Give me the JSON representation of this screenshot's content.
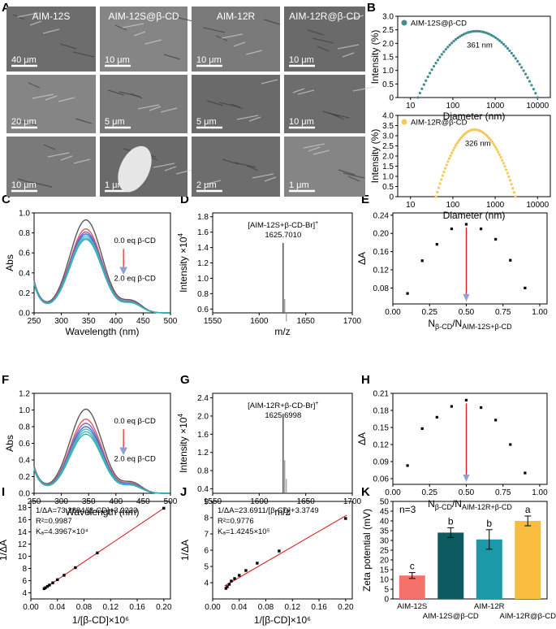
{
  "panel_labels": [
    "A",
    "B",
    "C",
    "D",
    "E",
    "F",
    "G",
    "H",
    "I",
    "J",
    "K"
  ],
  "sem": {
    "columns": [
      "AIM-12S",
      "AIM-12S@β-CD",
      "AIM-12R",
      "AIM-12R@β-CD"
    ],
    "scale_bars": [
      [
        "40 μm",
        "10 μm",
        "10 μm",
        "10 μm"
      ],
      [
        "20 μm",
        "5 μm",
        "5 μm",
        "10 μm"
      ],
      [
        "10 μm",
        "1 μm",
        "2 μm",
        "1 μm"
      ]
    ]
  },
  "colors": {
    "teal": "#3e8d8f",
    "gold": "#f5c95b",
    "red": "#e02020",
    "blue_arrow": "#8aa3d6",
    "bar1": "#f4726a",
    "bar2": "#0d5a61",
    "bar3": "#1c99a8",
    "bar4": "#f9bd3e"
  },
  "chart_data": [
    {
      "id": "B-top",
      "type": "scatter",
      "series": [
        {
          "name": "AIM-12S@β-CD",
          "peak_x": 361,
          "peak_y": 2.45,
          "x_min": 15,
          "x_max": 10000
        }
      ],
      "annotation": "361 nm",
      "xlabel": "Diameter (nm)",
      "ylabel": "Intensity (%)",
      "xscale": "log",
      "xlim": [
        5,
        20000
      ],
      "ylim": [
        0,
        3
      ],
      "xticks": [
        10,
        100,
        1000,
        10000
      ],
      "xtick_labels": [
        "10",
        "100",
        "1000",
        "10000"
      ],
      "yticks": [
        0,
        0.5,
        1,
        1.5,
        2,
        2.5,
        3
      ],
      "ytick_labels": [
        "0",
        "0.5",
        "1.0",
        "1.5",
        "2.0",
        "2.5",
        "3.0"
      ],
      "legend": "top-left"
    },
    {
      "id": "B-bottom",
      "type": "scatter",
      "series": [
        {
          "name": "AIM-12R@β-CD",
          "peak_x": 326,
          "peak_y": 3.3,
          "x_min": 40,
          "x_max": 3000
        }
      ],
      "annotation": "326 nm",
      "xlabel": "Diameter (nm)",
      "ylabel": "Intensity (%)",
      "xscale": "log",
      "xlim": [
        5,
        20000
      ],
      "ylim": [
        0,
        4
      ],
      "xticks": [
        10,
        100,
        1000,
        10000
      ],
      "xtick_labels": [
        "10",
        "100",
        "1000",
        "10000"
      ],
      "yticks": [
        0,
        0.5,
        1,
        1.5,
        2,
        2.5,
        3,
        3.5,
        4
      ],
      "ytick_labels": [
        "0",
        "0.5",
        "1.0",
        "1.5",
        "2.0",
        "2.5",
        "3.0",
        "3.5",
        "4.0"
      ],
      "legend": "top-left"
    },
    {
      "id": "C",
      "type": "line",
      "peak_x": 345,
      "peaks": [
        0.93,
        0.84,
        0.81,
        0.79,
        0.77,
        0.75,
        0.735
      ],
      "colors": [
        "#5a5a5a",
        "#e25a5a",
        "#8b5cc6",
        "#3a6fd8",
        "#5fb0b8",
        "#3fb8b0",
        "#2ab4b4"
      ],
      "xlabel": "Wavelength (nm)",
      "ylabel": "Abs",
      "xlim": [
        250,
        500
      ],
      "ylim": [
        0,
        1
      ],
      "xticks": [
        250,
        300,
        350,
        400,
        450,
        500
      ],
      "xtick_labels": [
        "250",
        "300",
        "350",
        "400",
        "450",
        "500"
      ],
      "yticks": [
        0,
        0.2,
        0.4,
        0.6,
        0.8,
        1
      ],
      "ytick_labels": [
        "0.0",
        "0.2",
        "0.4",
        "0.6",
        "0.8",
        "1.0"
      ],
      "annotations": [
        "0.0 eq β-CD",
        "2.0 eq β-CD"
      ]
    },
    {
      "id": "D",
      "type": "bar",
      "peak_x": 1625.701,
      "peak_y": 1.46,
      "label": "[AIM-12S+β-CD-Br]",
      "label_sup": "+",
      "label_value": "1625.7010",
      "xlabel": "m/z",
      "ylabel": "Intensity ×10",
      "ylabel_sup": "4",
      "xlim": [
        1550,
        1700
      ],
      "ylim": [
        0.55,
        1.85
      ],
      "xticks": [
        1550,
        1600,
        1650,
        1700
      ],
      "xtick_labels": [
        "1550",
        "1600",
        "1650",
        "1700"
      ],
      "yticks": [
        0.6,
        0.8,
        1,
        1.2,
        1.4,
        1.6,
        1.8
      ],
      "ytick_labels": [
        "0.6",
        "0.8",
        "1.0",
        "1.2",
        "1.4",
        "1.6",
        "1.8"
      ]
    },
    {
      "id": "E",
      "type": "scatter",
      "x": [
        0.1,
        0.2,
        0.3,
        0.4,
        0.5,
        0.6,
        0.7,
        0.8,
        0.9
      ],
      "y": [
        0.068,
        0.14,
        0.176,
        0.21,
        0.22,
        0.21,
        0.187,
        0.141,
        0.08
      ],
      "xlabel": "N",
      "xlabel_sub": "β-CD",
      "xlabel_mid": "/N",
      "xlabel_sub2": "AIM-12S+β-CD",
      "ylabel": "ΔA",
      "xlim": [
        0,
        1.05
      ],
      "ylim": [
        0.045,
        0.245
      ],
      "xticks": [
        0,
        0.25,
        0.5,
        0.75,
        1
      ],
      "xtick_labels": [
        "0.00",
        "0.25",
        "0.50",
        "0.75",
        "1.00"
      ],
      "yticks": [
        0.08,
        0.12,
        0.16,
        0.2,
        0.24
      ],
      "ytick_labels": [
        "0.08",
        "0.12",
        "0.16",
        "0.20",
        "0.24"
      ],
      "marker_x": 0.5
    },
    {
      "id": "F",
      "type": "line",
      "peak_x": 345,
      "peaks": [
        1.01,
        0.89,
        0.84,
        0.8,
        0.77,
        0.74,
        0.71
      ],
      "colors": [
        "#5a5a5a",
        "#e25a5a",
        "#8b5cc6",
        "#3a6fd8",
        "#5fb0b8",
        "#3fb8b0",
        "#2ab4b4"
      ],
      "xlabel": "Wavelength (nm)",
      "ylabel": "Abs",
      "xlim": [
        250,
        500
      ],
      "ylim": [
        0,
        1.2
      ],
      "xticks": [
        250,
        300,
        350,
        400,
        450,
        500
      ],
      "xtick_labels": [
        "250",
        "300",
        "350",
        "400",
        "450",
        "500"
      ],
      "yticks": [
        0,
        0.2,
        0.4,
        0.6,
        0.8,
        1,
        1.2
      ],
      "ytick_labels": [
        "0.0",
        "0.2",
        "0.4",
        "0.6",
        "0.8",
        "1.0",
        "1.2"
      ],
      "annotations": [
        "0.0 eq β-CD",
        "2.0 eq β-CD"
      ]
    },
    {
      "id": "G",
      "type": "bar",
      "peak_x": 1625.6998,
      "peak_y": 2.05,
      "label": "[AIM-12R+β-CD-Br]",
      "label_sup": "+",
      "label_value": "1625.6998",
      "xlabel": "m/z",
      "ylabel": "Intensity ×10",
      "ylabel_sup": "4",
      "xlim": [
        1550,
        1700
      ],
      "ylim": [
        0.3,
        2.5
      ],
      "xticks": [
        1550,
        1600,
        1650,
        1700
      ],
      "xtick_labels": [
        "1550",
        "1600",
        "1650",
        "1700"
      ],
      "yticks": [
        0.4,
        0.8,
        1.2,
        1.6,
        2,
        2.4
      ],
      "ytick_labels": [
        "0.4",
        "0.8",
        "1.2",
        "1.6",
        "2.0",
        "2.4"
      ]
    },
    {
      "id": "H",
      "type": "scatter",
      "x": [
        0.1,
        0.2,
        0.3,
        0.4,
        0.5,
        0.6,
        0.7,
        0.8,
        0.9
      ],
      "y": [
        0.083,
        0.148,
        0.168,
        0.187,
        0.198,
        0.185,
        0.163,
        0.12,
        0.07
      ],
      "xlabel": "N",
      "xlabel_sub": "β-CD",
      "xlabel_mid": "/N",
      "xlabel_sub2": "AIM-12R+β-CD",
      "ylabel": "ΔA",
      "xlim": [
        0,
        1.05
      ],
      "ylim": [
        0.05,
        0.21
      ],
      "xticks": [
        0,
        0.25,
        0.5,
        0.75,
        1
      ],
      "xtick_labels": [
        "0.00",
        "0.25",
        "0.50",
        "0.75",
        "1.00"
      ],
      "yticks": [
        0.06,
        0.09,
        0.12,
        0.15,
        0.18,
        0.21
      ],
      "ytick_labels": [
        "0.06",
        "0.09",
        "0.12",
        "0.15",
        "0.18",
        "0.21"
      ],
      "marker_x": 0.5
    },
    {
      "id": "I",
      "type": "scatter",
      "x": [
        0.02,
        0.022,
        0.025,
        0.028,
        0.033,
        0.04,
        0.05,
        0.067,
        0.1,
        0.2
      ],
      "fit": {
        "slope": 73.2884,
        "intercept": 3.2223
      },
      "equation": "1/ΔA=73.2884/[β-CD]+3.2223",
      "r2": "R²=0.9987",
      "ka": "Kₐ=4.3967×10⁴",
      "xlabel": "1/[β-CD]×10⁶",
      "ylabel": "1/ΔA",
      "xlim": [
        0,
        0.21
      ],
      "ylim": [
        3,
        19
      ],
      "xticks": [
        0,
        0.04,
        0.08,
        0.12,
        0.16,
        0.2
      ],
      "xtick_labels": [
        "0.00",
        "0.04",
        "0.08",
        "0.12",
        "0.16",
        "0.20"
      ],
      "yticks": [
        4,
        6,
        8,
        10,
        12,
        14,
        16,
        18
      ],
      "ytick_labels": [
        "4",
        "6",
        "8",
        "10",
        "12",
        "14",
        "16",
        "18"
      ]
    },
    {
      "id": "J",
      "type": "scatter",
      "x": [
        0.02,
        0.022,
        0.025,
        0.028,
        0.033,
        0.04,
        0.05,
        0.067,
        0.1,
        0.2
      ],
      "y": [
        3.65,
        3.75,
        3.9,
        4.1,
        4.25,
        4.45,
        4.75,
        5.2,
        5.95,
        7.95
      ],
      "fit": {
        "slope": 23.6911,
        "intercept": 3.3749
      },
      "equation": "1/ΔA=23.6911/[β-CD]+3.3749",
      "r2": "R²=0.9776",
      "ka": "Kₐ=1.4245×10⁵",
      "xlabel": "1/[β-CD]×10⁶",
      "ylabel": "1/ΔA",
      "xlim": [
        0,
        0.21
      ],
      "ylim": [
        3,
        9
      ],
      "xticks": [
        0,
        0.04,
        0.08,
        0.12,
        0.16,
        0.2
      ],
      "xtick_labels": [
        "0.00",
        "0.04",
        "0.08",
        "0.12",
        "0.16",
        "0.20"
      ],
      "yticks": [
        4,
        5,
        6,
        7,
        8,
        9
      ],
      "ytick_labels": [
        "4",
        "5",
        "6",
        "7",
        "8",
        "9"
      ]
    },
    {
      "id": "K",
      "type": "bar",
      "categories": [
        "AIM-12S",
        "AIM-12S@β-CD",
        "AIM-12R",
        "AIM-12R@β-CD"
      ],
      "values": [
        12,
        34,
        30.5,
        40
      ],
      "errors": [
        1.5,
        2.5,
        5,
        2.5
      ],
      "letters": [
        "c",
        "b",
        "b",
        "a"
      ],
      "note": "n=3",
      "ylabel": "Zeta potential (mV)",
      "ylim": [
        0,
        50
      ],
      "yticks": [
        0,
        5,
        10,
        15,
        20,
        25,
        30,
        35,
        40,
        45,
        50
      ],
      "ytick_labels": [
        "0",
        "5",
        "10",
        "15",
        "20",
        "25",
        "30",
        "35",
        "40",
        "45",
        "50"
      ]
    }
  ]
}
